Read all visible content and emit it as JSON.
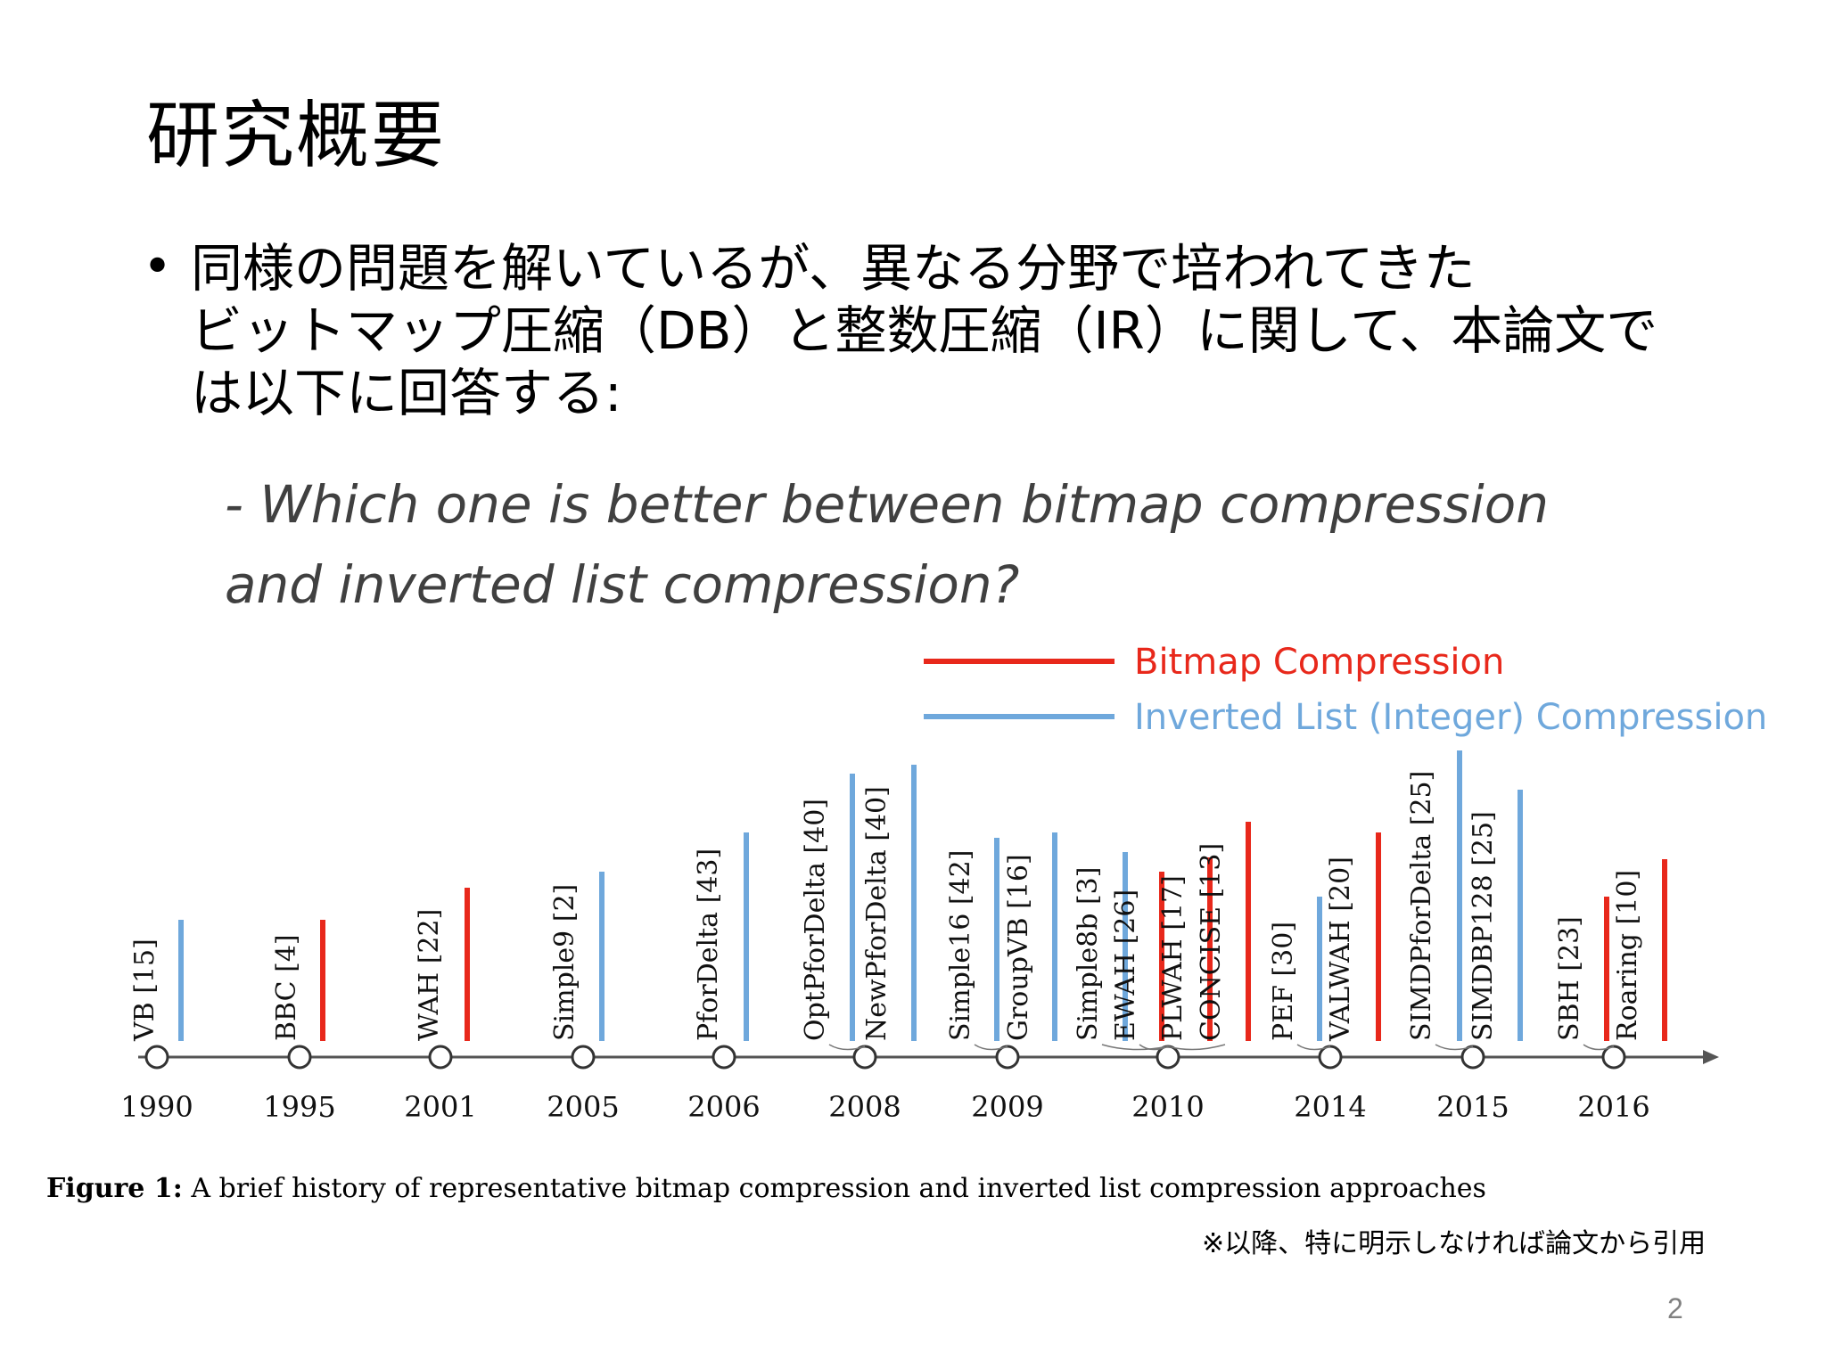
{
  "slide": {
    "title": "研究概要",
    "bullet_symbol": "•",
    "bullet_lines": [
      "同様の問題を解いているが、異なる分野で培われてきた",
      "ビットマップ圧縮（DB）と整数圧縮（IR）に関して、本論文で",
      "は以下に回答する:"
    ],
    "question_lines": [
      "- Which one is better between bitmap compression",
      "and inverted list compression?"
    ],
    "note": "※以降、特に明示しなければ論文から引用",
    "page_number": "2"
  },
  "legend": [
    {
      "label": "Bitmap Compression",
      "color": "#e8281b"
    },
    {
      "label": "Inverted List (Integer) Compression",
      "color": "#6fa8dc"
    }
  ],
  "colors": {
    "bitmap": "#e8281b",
    "inverted_list": "#6fa8dc"
  },
  "figure": {
    "caption_label": "Figure 1:",
    "caption_text": "A brief history of representative bitmap compression and inverted list compression approaches",
    "years": [
      "1990",
      "1995",
      "2001",
      "2005",
      "2006",
      "2008",
      "2009",
      "2010",
      "2014",
      "2015",
      "2016"
    ],
    "methods": [
      {
        "name": "VB [15]",
        "year": "1990",
        "kind": "inverted_list"
      },
      {
        "name": "BBC [4]",
        "year": "1995",
        "kind": "bitmap"
      },
      {
        "name": "WAH [22]",
        "year": "2001",
        "kind": "bitmap"
      },
      {
        "name": "Simple9 [2]",
        "year": "2005",
        "kind": "inverted_list"
      },
      {
        "name": "PforDelta [43]",
        "year": "2006",
        "kind": "inverted_list"
      },
      {
        "name": "OptPforDelta [40]",
        "year": "2008",
        "kind": "inverted_list"
      },
      {
        "name": "NewPforDelta [40]",
        "year": "2008",
        "kind": "inverted_list"
      },
      {
        "name": "Simple16 [42]",
        "year": "2009",
        "kind": "inverted_list"
      },
      {
        "name": "GroupVB [16]",
        "year": "2009",
        "kind": "inverted_list"
      },
      {
        "name": "Simple8b [3]",
        "year": "2010",
        "kind": "inverted_list"
      },
      {
        "name": "EWAH [26]",
        "year": "2010",
        "kind": "bitmap"
      },
      {
        "name": "PLWAH [17]",
        "year": "2010",
        "kind": "bitmap"
      },
      {
        "name": "CONCISE [13]",
        "year": "2010",
        "kind": "bitmap"
      },
      {
        "name": "PEF [30]",
        "year": "2014",
        "kind": "inverted_list"
      },
      {
        "name": "VALWAH [20]",
        "year": "2014",
        "kind": "bitmap"
      },
      {
        "name": "SIMDPforDelta [25]",
        "year": "2015",
        "kind": "inverted_list"
      },
      {
        "name": "SIMDBP128 [25]",
        "year": "2015",
        "kind": "inverted_list"
      },
      {
        "name": "SBH [23]",
        "year": "2016",
        "kind": "bitmap"
      },
      {
        "name": "Roaring [10]",
        "year": "2016",
        "kind": "bitmap"
      }
    ]
  }
}
